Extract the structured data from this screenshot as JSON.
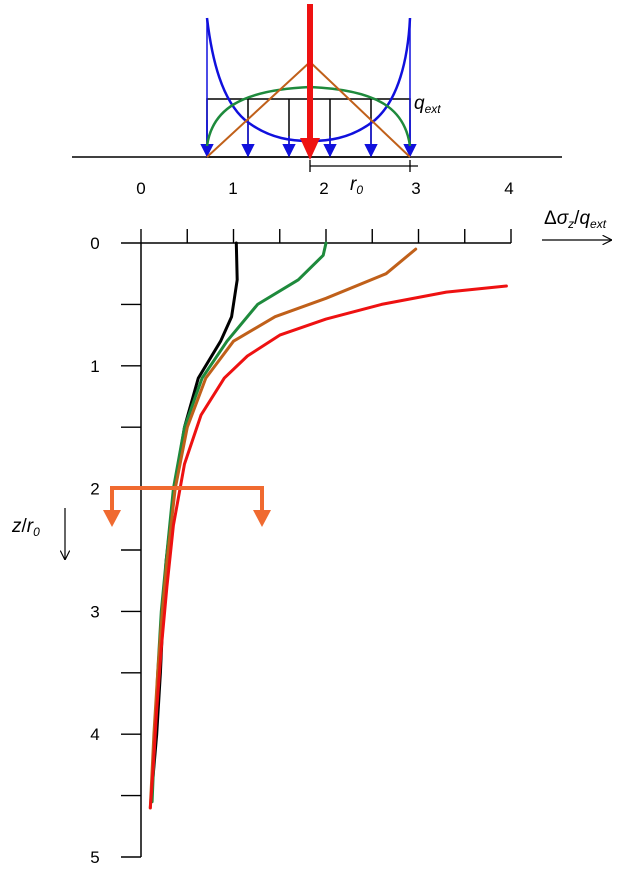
{
  "figure": {
    "load_axis_ticks": [
      "0",
      "1",
      "2",
      "3",
      "4"
    ],
    "load_symbol": "q",
    "load_symbol_sub": "ext",
    "radius_symbol": "r",
    "radius_symbol_sub": "0"
  },
  "chart_data": {
    "type": "line",
    "x_label": {
      "delta": "Δ",
      "sigma": "σ",
      "sigma_sub": "z",
      "slash": "/",
      "q": "q",
      "q_sub": "ext"
    },
    "y_label": {
      "z": "z",
      "slash": "/",
      "r": "r",
      "r_sub": "0"
    },
    "x_ticks": [
      "0",
      "1",
      "2",
      "3",
      "4"
    ],
    "y_ticks": [
      "0",
      "1",
      "2",
      "3",
      "4",
      "5"
    ],
    "xlim": [
      0,
      4
    ],
    "ylim": [
      0,
      5
    ],
    "y_inverted": true,
    "grid": false,
    "colors": {
      "black": "#000000",
      "green": "#1e8a3c",
      "brown": "#c0601a",
      "red": "#ee1111",
      "blue": "#1010dd",
      "orange": "#f06a30"
    },
    "series": [
      {
        "color": "black",
        "points": [
          [
            1.03,
            0.0
          ],
          [
            1.04,
            0.3
          ],
          [
            0.98,
            0.6
          ],
          [
            0.86,
            0.8
          ],
          [
            0.62,
            1.1
          ],
          [
            0.47,
            1.5
          ],
          [
            0.36,
            2.0
          ],
          [
            0.27,
            2.6
          ],
          [
            0.24,
            3.0
          ],
          [
            0.21,
            3.5
          ],
          [
            0.17,
            4.0
          ],
          [
            0.13,
            4.35
          ]
        ]
      },
      {
        "color": "green",
        "points": [
          [
            2.0,
            0.0
          ],
          [
            1.97,
            0.1
          ],
          [
            1.7,
            0.3
          ],
          [
            1.26,
            0.5
          ],
          [
            0.93,
            0.8
          ],
          [
            0.66,
            1.1
          ],
          [
            0.47,
            1.5
          ],
          [
            0.35,
            2.0
          ],
          [
            0.27,
            2.6
          ],
          [
            0.22,
            3.0
          ],
          [
            0.18,
            3.5
          ],
          [
            0.15,
            4.0
          ],
          [
            0.12,
            4.55
          ]
        ]
      },
      {
        "color": "brown",
        "points": [
          [
            2.97,
            0.05
          ],
          [
            2.65,
            0.25
          ],
          [
            2.0,
            0.45
          ],
          [
            1.45,
            0.6
          ],
          [
            1.0,
            0.8
          ],
          [
            0.7,
            1.1
          ],
          [
            0.5,
            1.5
          ],
          [
            0.37,
            2.0
          ],
          [
            0.28,
            2.6
          ],
          [
            0.23,
            3.0
          ],
          [
            0.18,
            3.5
          ],
          [
            0.14,
            4.0
          ],
          [
            0.1,
            4.6
          ]
        ]
      },
      {
        "color": "red",
        "points": [
          [
            3.95,
            0.35
          ],
          [
            3.3,
            0.4
          ],
          [
            2.6,
            0.5
          ],
          [
            2.0,
            0.62
          ],
          [
            1.5,
            0.75
          ],
          [
            1.15,
            0.92
          ],
          [
            0.9,
            1.1
          ],
          [
            0.65,
            1.4
          ],
          [
            0.47,
            1.8
          ],
          [
            0.35,
            2.3
          ],
          [
            0.28,
            2.8
          ],
          [
            0.22,
            3.3
          ],
          [
            0.17,
            3.8
          ],
          [
            0.13,
            4.3
          ],
          [
            0.1,
            4.6
          ]
        ]
      }
    ]
  }
}
